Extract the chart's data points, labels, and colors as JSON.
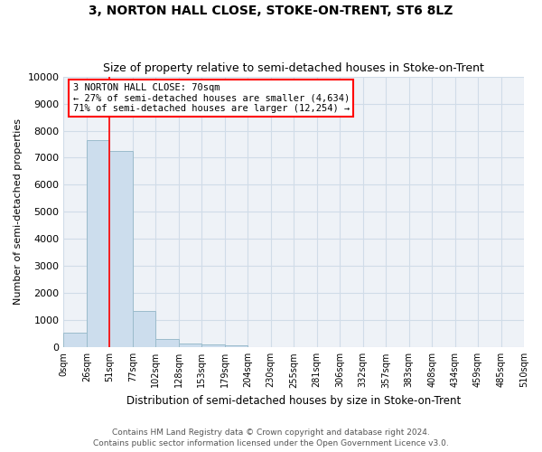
{
  "title": "3, NORTON HALL CLOSE, STOKE-ON-TRENT, ST6 8LZ",
  "subtitle": "Size of property relative to semi-detached houses in Stoke-on-Trent",
  "xlabel": "Distribution of semi-detached houses by size in Stoke-on-Trent",
  "ylabel": "Number of semi-detached properties",
  "bar_values": [
    550,
    7650,
    7250,
    1350,
    300,
    150,
    100,
    80,
    0,
    0,
    0,
    0,
    0,
    0,
    0,
    0,
    0,
    0,
    0,
    0
  ],
  "bar_color": "#ccdded",
  "bar_edge_color": "#9bbccc",
  "grid_color": "#d0dce8",
  "tick_labels": [
    "0sqm",
    "26sqm",
    "51sqm",
    "77sqm",
    "102sqm",
    "128sqm",
    "153sqm",
    "179sqm",
    "204sqm",
    "230sqm",
    "255sqm",
    "281sqm",
    "306sqm",
    "332sqm",
    "357sqm",
    "383sqm",
    "408sqm",
    "434sqm",
    "459sqm",
    "485sqm",
    "510sqm"
  ],
  "ylim": [
    0,
    10000
  ],
  "yticks": [
    0,
    1000,
    2000,
    3000,
    4000,
    5000,
    6000,
    7000,
    8000,
    9000,
    10000
  ],
  "red_line_x": 1.5,
  "annotation_title": "3 NORTON HALL CLOSE: 70sqm",
  "annotation_line1": "← 27% of semi-detached houses are smaller (4,634)",
  "annotation_line2": "71% of semi-detached houses are larger (12,254) →",
  "footer_line1": "Contains HM Land Registry data © Crown copyright and database right 2024.",
  "footer_line2": "Contains public sector information licensed under the Open Government Licence v3.0.",
  "bg_color": "#ffffff",
  "plot_bg_color": "#eef2f7"
}
